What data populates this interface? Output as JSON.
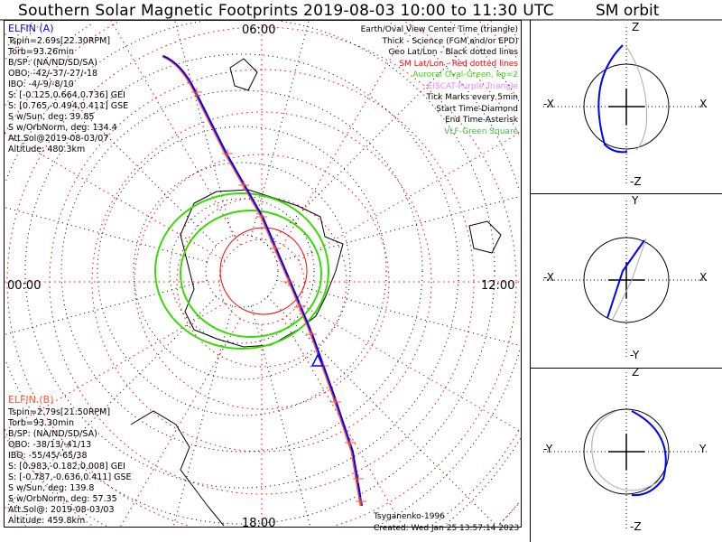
{
  "title": "Southern Solar Magnetic Footprints 2019-08-03 10:00 to 11:30 UTC",
  "orbit_title": "SM orbit",
  "mlt_labels": {
    "top": "06:00",
    "left": "00:00",
    "right": "12:00",
    "bottom": "18:00"
  },
  "elfin_a": {
    "name": "ELFIN (A)",
    "lines": [
      "Tspin=2.69s[22.30RPM]",
      "Torb=93.26min",
      "B/SP: (NA/ND/SD/SA)",
      "OBO: -42/-37/-27/-18",
      "IBO: -4/-9/-8/10",
      "S: [-0.125,0.664,0.736] GEI",
      "S: [0.765,-0.494,0.411] GSE",
      "S w/Sun, deg: 39.85",
      "S w/OrbNorm, deg: 134.4",
      "Att.Sol@2019-08-03/07",
      "Altitude: 480.3km"
    ]
  },
  "elfin_b": {
    "name": "ELFIN (B)",
    "lines": [
      "Tspin=2.79s[21.50RPM]",
      "Torb=93.30min",
      "B/SP: (NA/ND/SD/SA)",
      "OBO: -38/13/-41/13",
      "IBO: -55/45/-65/38",
      "S: [0.983,-0.182,0.008] GEI",
      "S: [-0.787,-0.636,0.411] GSE",
      "S w/Sun, deg: 139.8",
      "S w/OrbNorm, deg: 57.35",
      "Att.Sol@: 2019-08-03/03",
      "Altitude: 459.8km"
    ]
  },
  "legend": [
    {
      "text": "Earth/Oval View Center Time (triangle)",
      "color": "#000000"
    },
    {
      "text": "Thick - Science (FGM and/or EPD)",
      "color": "#000000"
    },
    {
      "text": "Geo Lat/Lon - Black dotted lines",
      "color": "#000000"
    },
    {
      "text": "SM Lat/Lon - Red dotted lines",
      "color": "#ff0000"
    },
    {
      "text": "Auroral Oval-Green, kp=2",
      "color": "#33dd00"
    },
    {
      "text": "EISCAT-Purple Triangle",
      "color": "#ee82ee"
    },
    {
      "text": "Tick Marks every 5min",
      "color": "#000000"
    },
    {
      "text": "Start Time-Diamond",
      "color": "#000000"
    },
    {
      "text": "End Time-Asterisk",
      "color": "#000000"
    },
    {
      "text": "VLF-Green Square",
      "color": "#44bb44"
    }
  ],
  "credit": "Tsyganenko-1996",
  "created": "Created: Wed Jan 25 13:57:14 2023",
  "panels": [
    {
      "up": "Z",
      "down": "-Z",
      "left": "-X",
      "right": "X"
    },
    {
      "up": "Y",
      "down": "-Y",
      "left": "-X",
      "right": "X"
    },
    {
      "up": "Z",
      "down": "-Z",
      "left": "-Y",
      "right": "Y"
    }
  ],
  "colors": {
    "elfin_a": "#0000ff",
    "elfin_b": "#ff5533",
    "oval": "#33dd00",
    "sm_grid": "#ff0000"
  }
}
